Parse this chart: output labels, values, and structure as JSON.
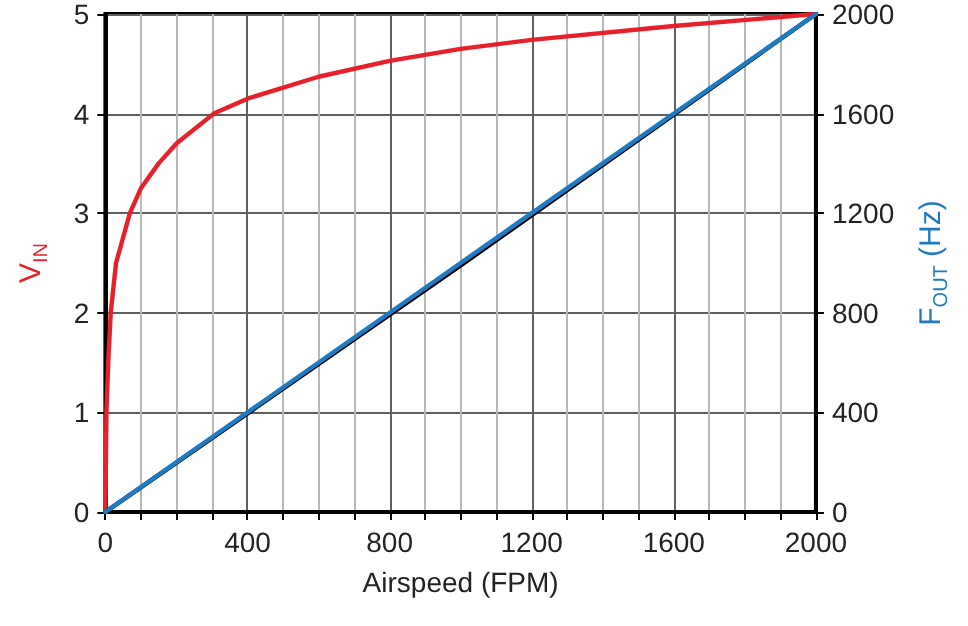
{
  "chart_data": {
    "type": "line",
    "xlabel": "Airspeed (FPM)",
    "ylabel": "V$_{IN}$",
    "y2label": "F$_{OUT}$ (Hz)",
    "xlim": [
      0,
      2000
    ],
    "xticks": [
      0,
      {
        "value": 100,
        "label": null
      },
      {
        "value": 200,
        "label": null
      },
      {
        "value": 300,
        "label": null
      },
      400,
      {
        "value": 500,
        "label": null
      },
      {
        "value": 600,
        "label": null
      },
      {
        "value": 700,
        "label": null
      },
      800,
      {
        "value": 900,
        "label": null
      },
      {
        "value": 1000,
        "label": null
      },
      {
        "value": 1100,
        "label": null
      },
      1200,
      {
        "value": 1300,
        "label": null
      },
      {
        "value": 1400,
        "label": null
      },
      {
        "value": 1500,
        "label": null
      },
      1600,
      {
        "value": 1700,
        "label": null
      },
      {
        "value": 1800,
        "label": null
      },
      {
        "value": 1900,
        "label": null
      },
      2000
    ],
    "ylim": [
      0,
      5
    ],
    "yticks": [
      0,
      1,
      2,
      3,
      4,
      5
    ],
    "y2lim": [
      0,
      2000
    ],
    "y2ticks": [
      0,
      400,
      800,
      1200,
      1600,
      2000
    ],
    "grid": true,
    "marker": "none",
    "line_style": "solid",
    "series": [
      {
        "color": "#e8202a",
        "x": [
          0,
          3,
          8,
          15,
          30,
          69,
          100,
          150,
          200,
          305,
          400,
          600,
          800,
          1000,
          1200,
          1600,
          2000
        ],
        "values": [
          0,
          1,
          1.5,
          2,
          2.5,
          3,
          3.25,
          3.5,
          3.7,
          4,
          4.15,
          4.37,
          4.53,
          4.65,
          4.74,
          4.88,
          5
        ]
      },
      {
        "color": "#000000",
        "axis": "y2",
        "x": [
          0,
          1000,
          2000
        ],
        "values": [
          0,
          990,
          2000
        ]
      },
      {
        "color": "#1f7bc1",
        "axis": "y2",
        "x": [
          0,
          1000,
          2000
        ],
        "values": [
          0,
          1000,
          2000
        ]
      }
    ]
  }
}
